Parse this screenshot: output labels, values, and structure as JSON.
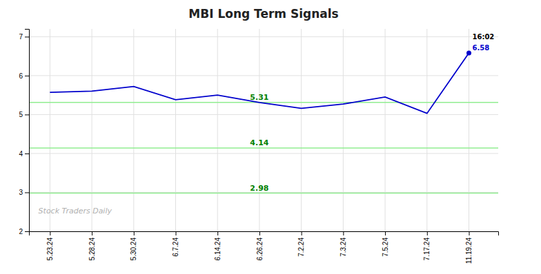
{
  "chart_data": {
    "type": "line",
    "title": "MBI Long Term Signals",
    "categories": [
      "5.23.24",
      "5.28.24",
      "5.30.24",
      "6.7.24",
      "6.14.24",
      "6.26.24",
      "7.2.24",
      "7.3.24",
      "7.5.24",
      "7.17.24",
      "11.19.24"
    ],
    "values": [
      5.57,
      5.6,
      5.72,
      5.38,
      5.5,
      5.31,
      5.16,
      5.27,
      5.45,
      5.03,
      6.58
    ],
    "color": "#0000cc",
    "marker": "circle",
    "highlight_point": "11.19.24",
    "hlines": [
      {
        "value": 5.31,
        "label": "5.31"
      },
      {
        "value": 4.14,
        "label": "4.14"
      },
      {
        "value": 2.98,
        "label": "2.98"
      }
    ],
    "hline_color": "#90ee90",
    "hline_label_color": "#008000",
    "annotations": [
      {
        "text": "16:02",
        "x": "11.19.24",
        "color": "#000000"
      },
      {
        "text": "6.58",
        "x": "11.19.24",
        "color": "#0000cc"
      }
    ],
    "watermark": "Stock Traders Daily",
    "ylim": [
      2.0,
      7.2
    ],
    "yticks": [
      2,
      3,
      4,
      5,
      6,
      7
    ],
    "grid": true
  }
}
